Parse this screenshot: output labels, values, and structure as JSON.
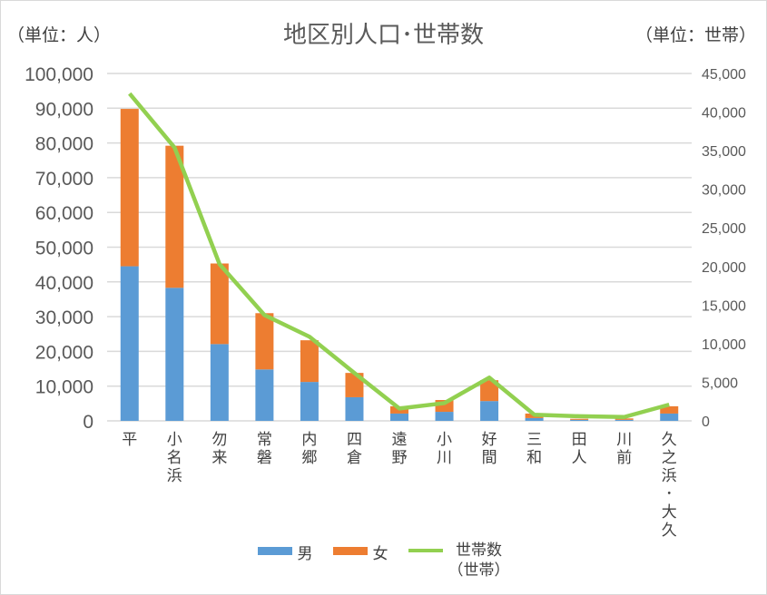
{
  "chart_data": {
    "type": "bar",
    "title": "地区別人口･世帯数",
    "left_unit": "（単位：人）",
    "right_unit": "（単位：世帯）",
    "categories": [
      "平",
      "小名浜",
      "勿来",
      "常磐",
      "内郷",
      "四倉",
      "遠野",
      "小川",
      "好間",
      "三和",
      "田人",
      "川前",
      "久之浜･大久"
    ],
    "series": [
      {
        "name": "男",
        "type": "bar",
        "stack": "pop",
        "axis": "left",
        "color": "#5b9bd5",
        "values": [
          44500,
          38300,
          22100,
          14800,
          11200,
          6800,
          2100,
          2600,
          5700,
          800,
          300,
          300,
          2100
        ]
      },
      {
        "name": "女",
        "type": "bar",
        "stack": "pop",
        "axis": "left",
        "color": "#ed7d31",
        "values": [
          45300,
          40900,
          23200,
          16200,
          12000,
          7000,
          2100,
          3400,
          6000,
          1300,
          300,
          400,
          2100
        ]
      },
      {
        "name": "世帯数",
        "name_sub": "（世帯）",
        "type": "line",
        "axis": "right",
        "color": "#92d050",
        "values": [
          42400,
          35400,
          20300,
          13700,
          10900,
          6200,
          1600,
          2300,
          5600,
          800,
          600,
          500,
          2100
        ]
      }
    ],
    "ylim_left": [
      0,
      100000
    ],
    "ylim_right": [
      0,
      45000
    ],
    "yticks_left": [
      "0",
      "10,000",
      "20,000",
      "30,000",
      "40,000",
      "50,000",
      "60,000",
      "70,000",
      "80,000",
      "90,000",
      "100,000"
    ],
    "yticks_right": [
      "0",
      "5,000",
      "10,000",
      "15,000",
      "20,000",
      "25,000",
      "30,000",
      "35,000",
      "40,000",
      "45,000"
    ],
    "grid": true,
    "legend": "bottom"
  }
}
